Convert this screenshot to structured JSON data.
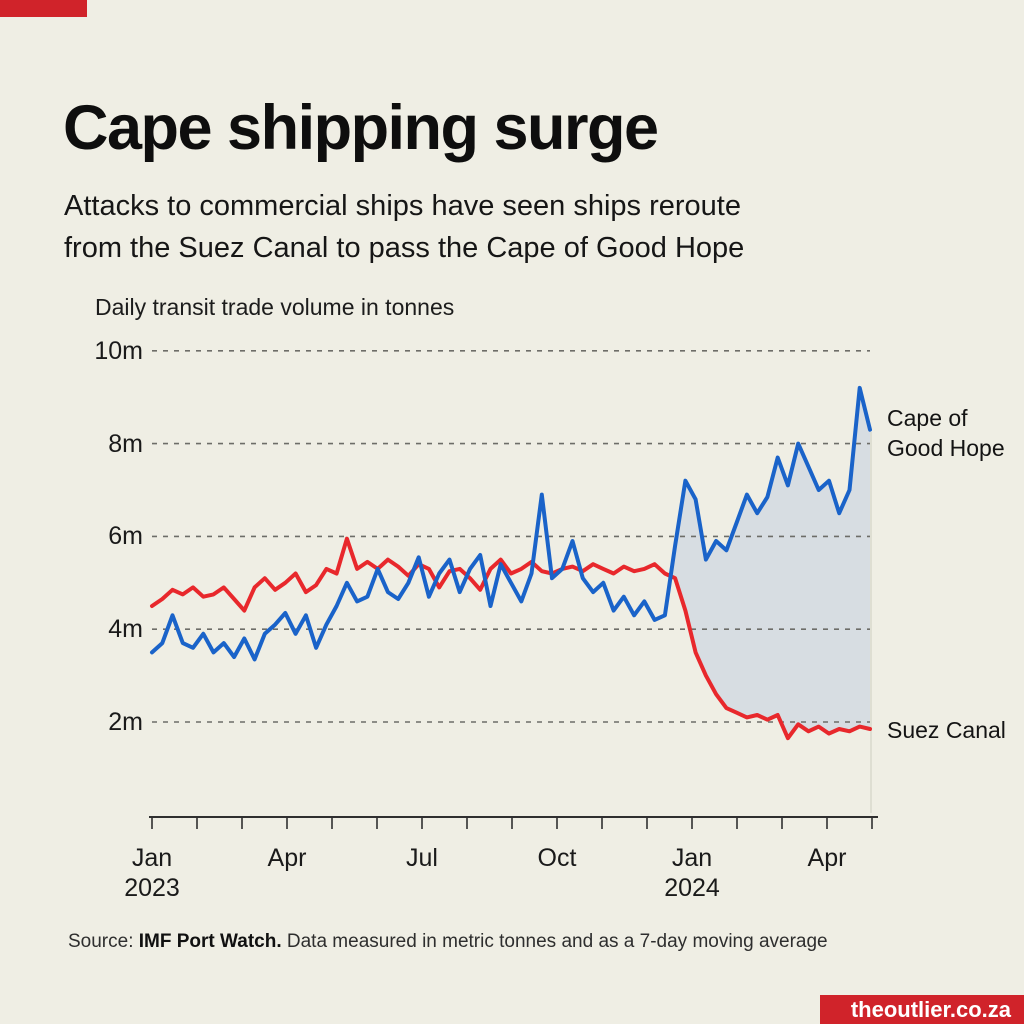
{
  "brand": {
    "accent_color": "#d0232a",
    "badge_text": "theoutlier.co.za"
  },
  "header": {
    "title": "Cape shipping surge",
    "subtitle": "Attacks to commercial ships have seen ships reroute\nfrom the Suez Canal to pass the Cape of Good Hope"
  },
  "labels": {
    "cape": "Cape of\nGood Hope",
    "suez": "Suez Canal"
  },
  "source": {
    "prefix": "Source: ",
    "bold": "IMF Port Watch.",
    "rest": " Data measured in metric tonnes and as a 7-day moving average"
  },
  "chart_data": {
    "type": "line",
    "title": "Daily transit trade volume in tonnes",
    "ylabel": "Daily transit trade volume in tonnes",
    "xlabel": "",
    "ylim": [
      0,
      10.6
    ],
    "grid": "horizontal dashed",
    "legend_position": "right of line ends",
    "y_ticks": [
      {
        "label": "10m",
        "value": 10
      },
      {
        "label": "8m",
        "value": 8
      },
      {
        "label": "6m",
        "value": 6
      },
      {
        "label": "4m",
        "value": 4
      },
      {
        "label": "2m",
        "value": 2
      }
    ],
    "x_axis": {
      "start": "Jan 2023",
      "end": "May 2024",
      "month_tick_count": 17,
      "tick_labels": [
        {
          "label": "Jan",
          "sublabel": "2023",
          "month_index": 0
        },
        {
          "label": "Apr",
          "sublabel": "",
          "month_index": 3
        },
        {
          "label": "Jul",
          "sublabel": "",
          "month_index": 6
        },
        {
          "label": "Oct",
          "sublabel": "",
          "month_index": 9
        },
        {
          "label": "Jan",
          "sublabel": "2024",
          "month_index": 12
        },
        {
          "label": "Apr",
          "sublabel": "",
          "month_index": 15
        }
      ]
    },
    "sampling": "weekly values, millions of tonnes, 7-day moving average",
    "x_step_days": 7,
    "series": [
      {
        "name": "Cape of Good Hope",
        "color": "#1a63c9",
        "values": [
          3.5,
          3.7,
          4.3,
          3.7,
          3.6,
          3.9,
          3.5,
          3.7,
          3.4,
          3.8,
          3.35,
          3.9,
          4.1,
          4.35,
          3.9,
          4.3,
          3.6,
          4.1,
          4.5,
          5.0,
          4.6,
          4.7,
          5.3,
          4.8,
          4.65,
          5.0,
          5.55,
          4.7,
          5.2,
          5.5,
          4.8,
          5.3,
          5.6,
          4.5,
          5.4,
          5.0,
          4.6,
          5.2,
          6.9,
          5.1,
          5.3,
          5.9,
          5.1,
          4.8,
          5.0,
          4.4,
          4.7,
          4.3,
          4.6,
          4.2,
          4.3,
          5.8,
          7.2,
          6.8,
          5.5,
          5.9,
          5.7,
          6.3,
          6.9,
          6.5,
          6.85,
          7.7,
          7.1,
          8.0,
          7.5,
          7.0,
          7.2,
          6.5,
          7.0,
          9.2,
          8.3
        ]
      },
      {
        "name": "Suez Canal",
        "color": "#e8282c",
        "values": [
          4.5,
          4.65,
          4.85,
          4.75,
          4.9,
          4.7,
          4.75,
          4.9,
          4.65,
          4.4,
          4.9,
          5.1,
          4.85,
          5.0,
          5.2,
          4.8,
          4.95,
          5.3,
          5.2,
          5.95,
          5.3,
          5.45,
          5.3,
          5.5,
          5.35,
          5.15,
          5.4,
          5.3,
          4.9,
          5.25,
          5.3,
          5.1,
          4.85,
          5.3,
          5.5,
          5.2,
          5.3,
          5.45,
          5.25,
          5.2,
          5.3,
          5.35,
          5.25,
          5.4,
          5.3,
          5.2,
          5.35,
          5.25,
          5.3,
          5.4,
          5.2,
          5.1,
          4.4,
          3.5,
          3.0,
          2.6,
          2.3,
          2.2,
          2.1,
          2.15,
          2.05,
          2.15,
          1.65,
          1.95,
          1.8,
          1.9,
          1.75,
          1.85,
          1.8,
          1.9,
          1.85
        ]
      }
    ],
    "area_fill": {
      "between": [
        "Cape of Good Hope",
        "Suez Canal"
      ],
      "from": "last crossing of the two lines (late Dec 2023)",
      "to": "end of series",
      "color": "#d7dde2"
    }
  }
}
